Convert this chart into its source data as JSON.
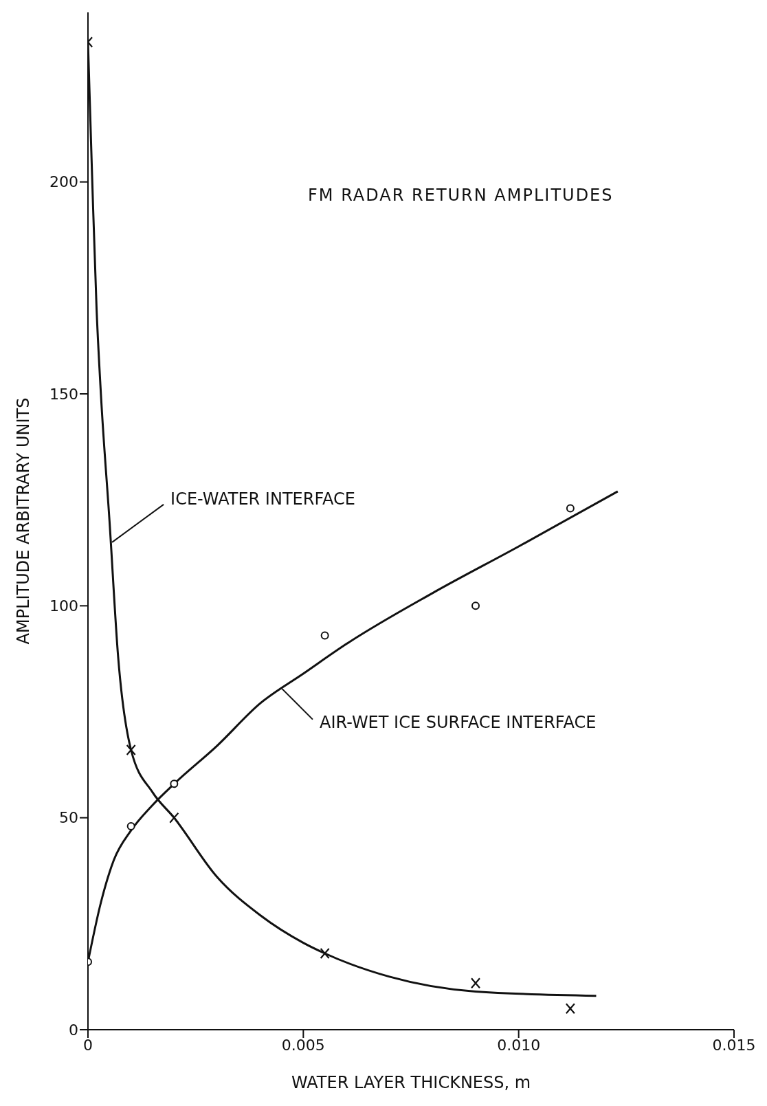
{
  "chart_data": {
    "type": "scatter",
    "title": "FM RADAR RETURN AMPLITUDES",
    "xlabel": "WATER LAYER THICKNESS, m",
    "ylabel": "AMPLITUDE ARBITRARY UNITS",
    "xlim": [
      0,
      0.015
    ],
    "xticks": [
      0,
      {
        "value": 0.005,
        "label": "0.005"
      },
      {
        "value": 0.01,
        "label": "0.010"
      },
      0.015
    ],
    "ylim": [
      0,
      240
    ],
    "yticks": [
      0,
      50,
      100,
      150,
      200
    ],
    "series": [
      {
        "marker": "cross",
        "color": "#111111",
        "x": [
          0,
          0.001,
          0.002,
          0.0055,
          0.009,
          0.0112
        ],
        "values": [
          233,
          66,
          50,
          18,
          11,
          5
        ]
      },
      {
        "marker": "circle",
        "color": "#111111",
        "x": [
          0,
          0.001,
          0.002,
          0.0055,
          0.009,
          0.0112
        ],
        "values": [
          16,
          48,
          58,
          93,
          100,
          123
        ]
      },
      {
        "type": "line",
        "marker": "none",
        "color": "#111111",
        "x": [
          0,
          0.0001,
          0.0002,
          0.0003,
          0.0005,
          0.0007,
          0.001,
          0.0015,
          0.002,
          0.003,
          0.004,
          0.005,
          0.0055,
          0.007,
          0.009,
          0.0118
        ],
        "values": [
          233,
          200,
          170,
          150,
          120,
          88,
          66,
          56,
          50,
          36,
          27,
          20.5,
          18,
          12.5,
          9,
          8
        ]
      },
      {
        "type": "line",
        "marker": "none",
        "color": "#111111",
        "x": [
          0,
          0.0003,
          0.0006,
          0.001,
          0.0015,
          0.002,
          0.003,
          0.004,
          0.005,
          0.006,
          0.008,
          0.01,
          0.0123
        ],
        "values": [
          16,
          30,
          40,
          47,
          53,
          58,
          67,
          77,
          84,
          91,
          103,
          114,
          127
        ]
      }
    ],
    "annotations": [
      {
        "text": "ICE-WATER INTERFACE",
        "x": 0.00056,
        "y": 115
      },
      {
        "text": "AIR-WET ICE SURFACE INTERFACE",
        "x": 0.0045,
        "y": 80.5
      }
    ]
  }
}
